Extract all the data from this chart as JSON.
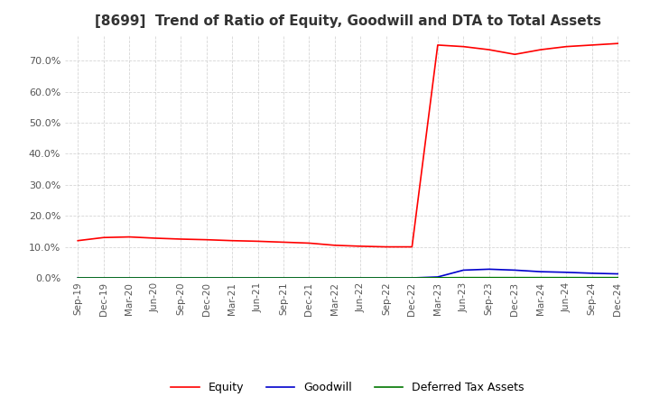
{
  "title": "[8699]  Trend of Ratio of Equity, Goodwill and DTA to Total Assets",
  "title_fontsize": 11,
  "background_color": "#ffffff",
  "grid_color": "#cccccc",
  "x_labels": [
    "Sep-19",
    "Dec-19",
    "Mar-20",
    "Jun-20",
    "Sep-20",
    "Dec-20",
    "Mar-21",
    "Jun-21",
    "Sep-21",
    "Dec-21",
    "Mar-22",
    "Jun-22",
    "Sep-22",
    "Dec-22",
    "Mar-23",
    "Jun-23",
    "Sep-23",
    "Dec-23",
    "Mar-24",
    "Jun-24",
    "Sep-24",
    "Dec-24"
  ],
  "equity": [
    12.0,
    13.0,
    13.2,
    12.8,
    12.5,
    12.3,
    12.0,
    11.8,
    11.5,
    11.2,
    10.5,
    10.2,
    10.0,
    10.0,
    75.0,
    74.5,
    73.5,
    72.0,
    73.5,
    74.5,
    75.0,
    75.5
  ],
  "goodwill": [
    0.0,
    0.0,
    0.0,
    0.0,
    0.0,
    0.0,
    0.0,
    0.0,
    0.0,
    0.0,
    0.0,
    0.0,
    0.0,
    0.0,
    0.3,
    2.5,
    2.8,
    2.5,
    2.0,
    1.8,
    1.5,
    1.3
  ],
  "dta": [
    0.0,
    0.0,
    0.0,
    0.0,
    0.0,
    0.0,
    0.0,
    0.0,
    0.0,
    0.0,
    0.0,
    0.0,
    0.0,
    0.0,
    0.05,
    0.1,
    0.1,
    0.1,
    0.1,
    0.1,
    0.1,
    0.1
  ],
  "equity_color": "#ff0000",
  "goodwill_color": "#0000cc",
  "dta_color": "#007700",
  "ylim": [
    0,
    78
  ],
  "yticks": [
    0,
    10,
    20,
    30,
    40,
    50,
    60,
    70
  ],
  "legend_labels": [
    "Equity",
    "Goodwill",
    "Deferred Tax Assets"
  ]
}
